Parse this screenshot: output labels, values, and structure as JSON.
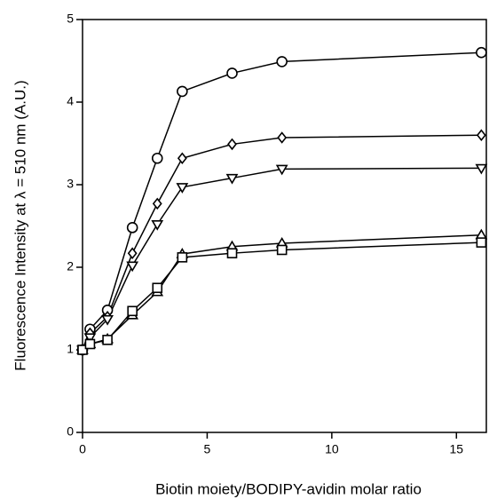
{
  "chart_data": {
    "type": "line",
    "xlabel": "Biotin moiety/BODIPY-avidin molar ratio",
    "ylabel": "Fluorescence Intensity at λ = 510 nm (A.U.)",
    "x": [
      0,
      0.3,
      1,
      2,
      3,
      4,
      6,
      8,
      16
    ],
    "series": [
      {
        "marker": "circle",
        "color": "#000000",
        "values": [
          1,
          1.25,
          1.48,
          2.48,
          3.32,
          4.13,
          4.35,
          4.49,
          4.6
        ]
      },
      {
        "marker": "diamond",
        "color": "#000000",
        "values": [
          1,
          1.2,
          1.4,
          2.17,
          2.77,
          3.32,
          3.49,
          3.57,
          3.6
        ]
      },
      {
        "marker": "triangle-down",
        "color": "#000000",
        "values": [
          1,
          1.15,
          1.37,
          2.02,
          2.52,
          2.97,
          3.08,
          3.19,
          3.2
        ]
      },
      {
        "marker": "triangle-up",
        "color": "#000000",
        "values": [
          1,
          1.07,
          1.13,
          1.42,
          1.7,
          2.16,
          2.25,
          2.29,
          2.39
        ]
      },
      {
        "marker": "square",
        "color": "#000000",
        "values": [
          1,
          1.07,
          1.12,
          1.47,
          1.75,
          2.12,
          2.17,
          2.21,
          2.3
        ]
      }
    ],
    "xlim": [
      0,
      16.2
    ],
    "ylim": [
      0,
      5
    ],
    "xticks": [
      0,
      5,
      10,
      15
    ],
    "yticks": [
      0,
      1,
      2,
      3,
      4,
      5
    ]
  }
}
